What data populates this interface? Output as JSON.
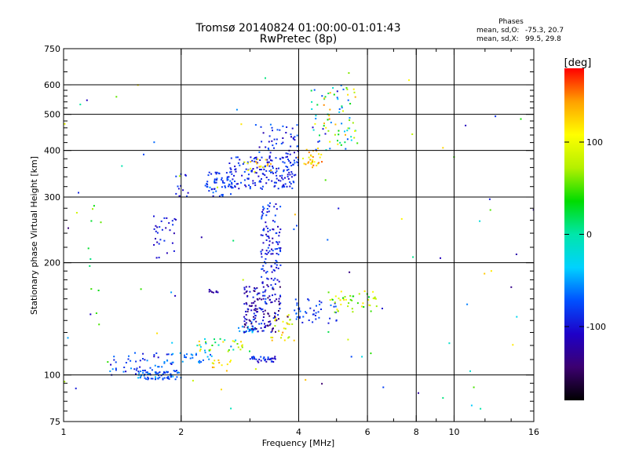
{
  "chart_data": {
    "type": "scatter",
    "title": "Tromsø 20140824 01:00:00-01:01:43",
    "subtitle": "RwPretec (8p)",
    "phase_header": "Phases",
    "phase_stats": [
      {
        "label": "mean, sd,O:",
        "values": "-75.3, 20.7"
      },
      {
        "label": "mean, sd,X:",
        "values": " 99.5, 29.8"
      }
    ],
    "xlabel": "Frequency [MHz]",
    "ylabel": "Stationary phase Virtual Height [km]",
    "x_scale": "log",
    "y_scale": "log",
    "xlim": [
      1,
      16
    ],
    "ylim": [
      75,
      750
    ],
    "x_ticks": [
      1,
      2,
      4,
      6,
      8,
      10,
      16
    ],
    "x_tick_labels": [
      "1",
      "2",
      "4",
      "6",
      "8",
      "10",
      "16"
    ],
    "x_minor_ticks": [
      3,
      5,
      7,
      9,
      12,
      14
    ],
    "y_ticks": [
      75,
      100,
      200,
      300,
      400,
      500,
      600,
      750
    ],
    "y_tick_labels": [
      "75",
      "100",
      "200",
      "300",
      "400",
      "500",
      "600",
      "750"
    ],
    "y_minor_ticks": [
      80,
      85,
      90,
      95,
      110,
      120,
      130,
      140,
      150,
      160,
      170,
      180,
      190,
      220,
      240,
      260,
      280,
      320,
      340,
      360,
      380,
      420,
      440,
      460,
      480,
      520,
      540,
      560,
      580,
      650,
      700
    ],
    "grid_x": [
      2,
      4,
      6,
      8,
      10
    ],
    "grid_y": [
      100,
      200,
      300,
      400,
      500,
      600
    ],
    "colorbar": {
      "label": "[deg]",
      "range": [
        -180,
        180
      ],
      "ticks": [
        100,
        0,
        -100
      ],
      "tick_labels": [
        "100",
        "0",
        "-100"
      ],
      "colormap": [
        "#000000",
        "#3c0070",
        "#1e00c8",
        "#0050ff",
        "#00d2ff",
        "#00e6aa",
        "#00dc00",
        "#b4f000",
        "#ffff00",
        "#ffa000",
        "#ff0000"
      ]
    },
    "clusters": [
      {
        "f": [
          1.55,
          2.0
        ],
        "h": [
          97,
          103
        ],
        "phase": [
          -90,
          -40
        ],
        "n": 70
      },
      {
        "f": [
          1.3,
          1.9
        ],
        "h": [
          100,
          115
        ],
        "phase": [
          -110,
          -50
        ],
        "n": 50
      },
      {
        "f": [
          1.8,
          2.4
        ],
        "h": [
          107,
          115
        ],
        "phase": [
          -80,
          -40
        ],
        "n": 28
      },
      {
        "f": [
          2.2,
          2.9
        ],
        "h": [
          115,
          125
        ],
        "phase": [
          -70,
          130
        ],
        "n": 35
      },
      {
        "f": [
          2.4,
          2.7
        ],
        "h": [
          102,
          110
        ],
        "phase": [
          80,
          150
        ],
        "n": 12
      },
      {
        "f": [
          2.8,
          3.1
        ],
        "h": [
          130,
          135
        ],
        "phase": [
          -60,
          -30
        ],
        "n": 18
      },
      {
        "f": [
          2.9,
          3.6
        ],
        "h": [
          130,
          175
        ],
        "phase": [
          -150,
          -70
        ],
        "n": 160
      },
      {
        "f": [
          3.2,
          3.6
        ],
        "h": [
          175,
          290
        ],
        "phase": [
          -120,
          -70
        ],
        "n": 110
      },
      {
        "f": [
          3.0,
          3.5
        ],
        "h": [
          108,
          112
        ],
        "phase": [
          -120,
          -70
        ],
        "n": 35
      },
      {
        "f": [
          3.4,
          3.9
        ],
        "h": [
          123,
          145
        ],
        "phase": [
          60,
          150
        ],
        "n": 25
      },
      {
        "f": [
          3.9,
          5.0
        ],
        "h": [
          137,
          160
        ],
        "phase": [
          -100,
          -60
        ],
        "n": 45
      },
      {
        "f": [
          4.8,
          6.4
        ],
        "h": [
          147,
          170
        ],
        "phase": [
          20,
          120
        ],
        "n": 45
      },
      {
        "f": [
          2.6,
          4.0
        ],
        "h": [
          315,
          385
        ],
        "phase": [
          -110,
          -70
        ],
        "n": 170
      },
      {
        "f": [
          3.1,
          4.0
        ],
        "h": [
          370,
          470
        ],
        "phase": [
          -120,
          -60
        ],
        "n": 55
      },
      {
        "f": [
          2.9,
          3.4
        ],
        "h": [
          350,
          380
        ],
        "phase": [
          100,
          160
        ],
        "n": 18
      },
      {
        "f": [
          4.1,
          4.6
        ],
        "h": [
          360,
          410
        ],
        "phase": [
          90,
          160
        ],
        "n": 30
      },
      {
        "f": [
          4.3,
          5.6
        ],
        "h": [
          400,
          600
        ],
        "phase": [
          -110,
          150
        ],
        "n": 80
      },
      {
        "f": [
          2.3,
          2.7
        ],
        "h": [
          300,
          350
        ],
        "phase": [
          -100,
          -60
        ],
        "n": 55
      },
      {
        "f": [
          1.7,
          1.95
        ],
        "h": [
          205,
          270
        ],
        "phase": [
          -120,
          -80
        ],
        "n": 30
      },
      {
        "f": [
          1.9,
          2.1
        ],
        "h": [
          300,
          350
        ],
        "phase": [
          -110,
          -80
        ],
        "n": 12
      },
      {
        "f": [
          2.35,
          2.5
        ],
        "h": [
          166,
          170
        ],
        "phase": [
          -140,
          -110
        ],
        "n": 8
      },
      {
        "f": [
          1.15,
          1.25
        ],
        "h": [
          130,
          310
        ],
        "phase": [
          0,
          80
        ],
        "n": 10
      },
      {
        "f": [
          1.0,
          16.0
        ],
        "h": [
          80,
          650
        ],
        "phase": [
          -150,
          150
        ],
        "n": 90
      }
    ],
    "scatter_seed": 24082014
  }
}
